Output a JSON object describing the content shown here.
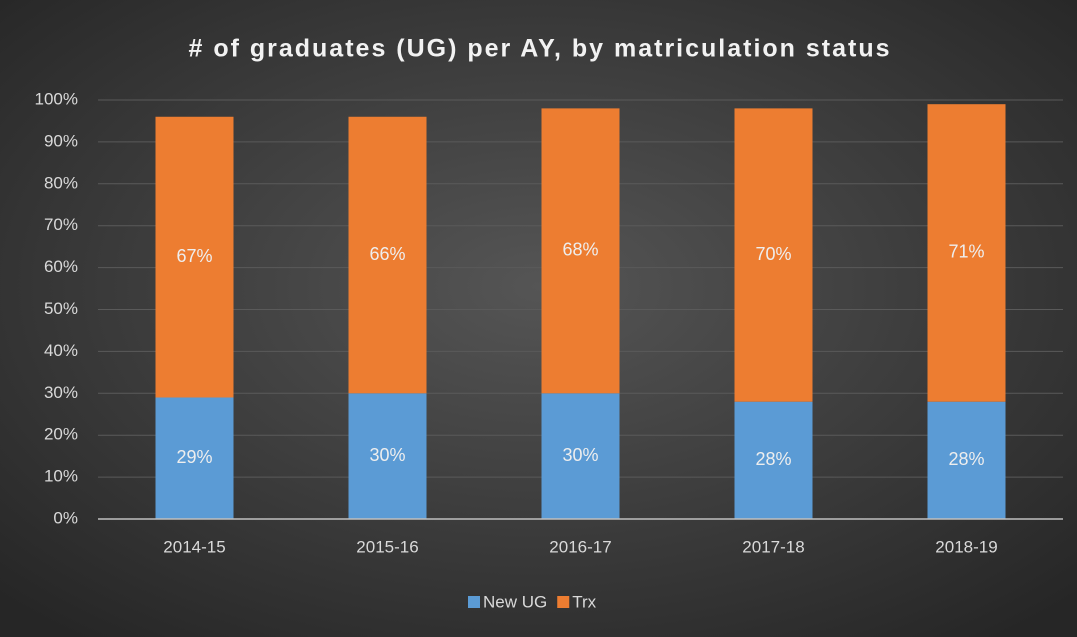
{
  "chart_data": {
    "type": "stacked_bar",
    "title": "# of graduates (UG) per AY, by matriculation status",
    "categories": [
      "2014-15",
      "2015-16",
      "2016-17",
      "2017-18",
      "2018-19"
    ],
    "series": [
      {
        "name": "New UG",
        "color": "#5b9bd5",
        "values": [
          29,
          30,
          30,
          28,
          28
        ],
        "value_labels": [
          "29%",
          "30%",
          "30%",
          "28%",
          "28%"
        ]
      },
      {
        "name": "Trx",
        "color": "#ed7d31",
        "values": [
          67,
          66,
          68,
          70,
          71
        ],
        "value_labels": [
          "67%",
          "66%",
          "68%",
          "70%",
          "71%"
        ]
      }
    ],
    "ylim": [
      0,
      100
    ],
    "yticks": [
      {
        "value": 0,
        "label": "0%"
      },
      {
        "value": 10,
        "label": "10%"
      },
      {
        "value": 20,
        "label": "20%"
      },
      {
        "value": 30,
        "label": "30%"
      },
      {
        "value": 40,
        "label": "40%"
      },
      {
        "value": 50,
        "label": "50%"
      },
      {
        "value": 60,
        "label": "60%"
      },
      {
        "value": 70,
        "label": "70%"
      },
      {
        "value": 80,
        "label": "80%"
      },
      {
        "value": 90,
        "label": "90%"
      },
      {
        "value": 100,
        "label": "100%"
      }
    ],
    "grid": true,
    "legend": "bottom"
  }
}
